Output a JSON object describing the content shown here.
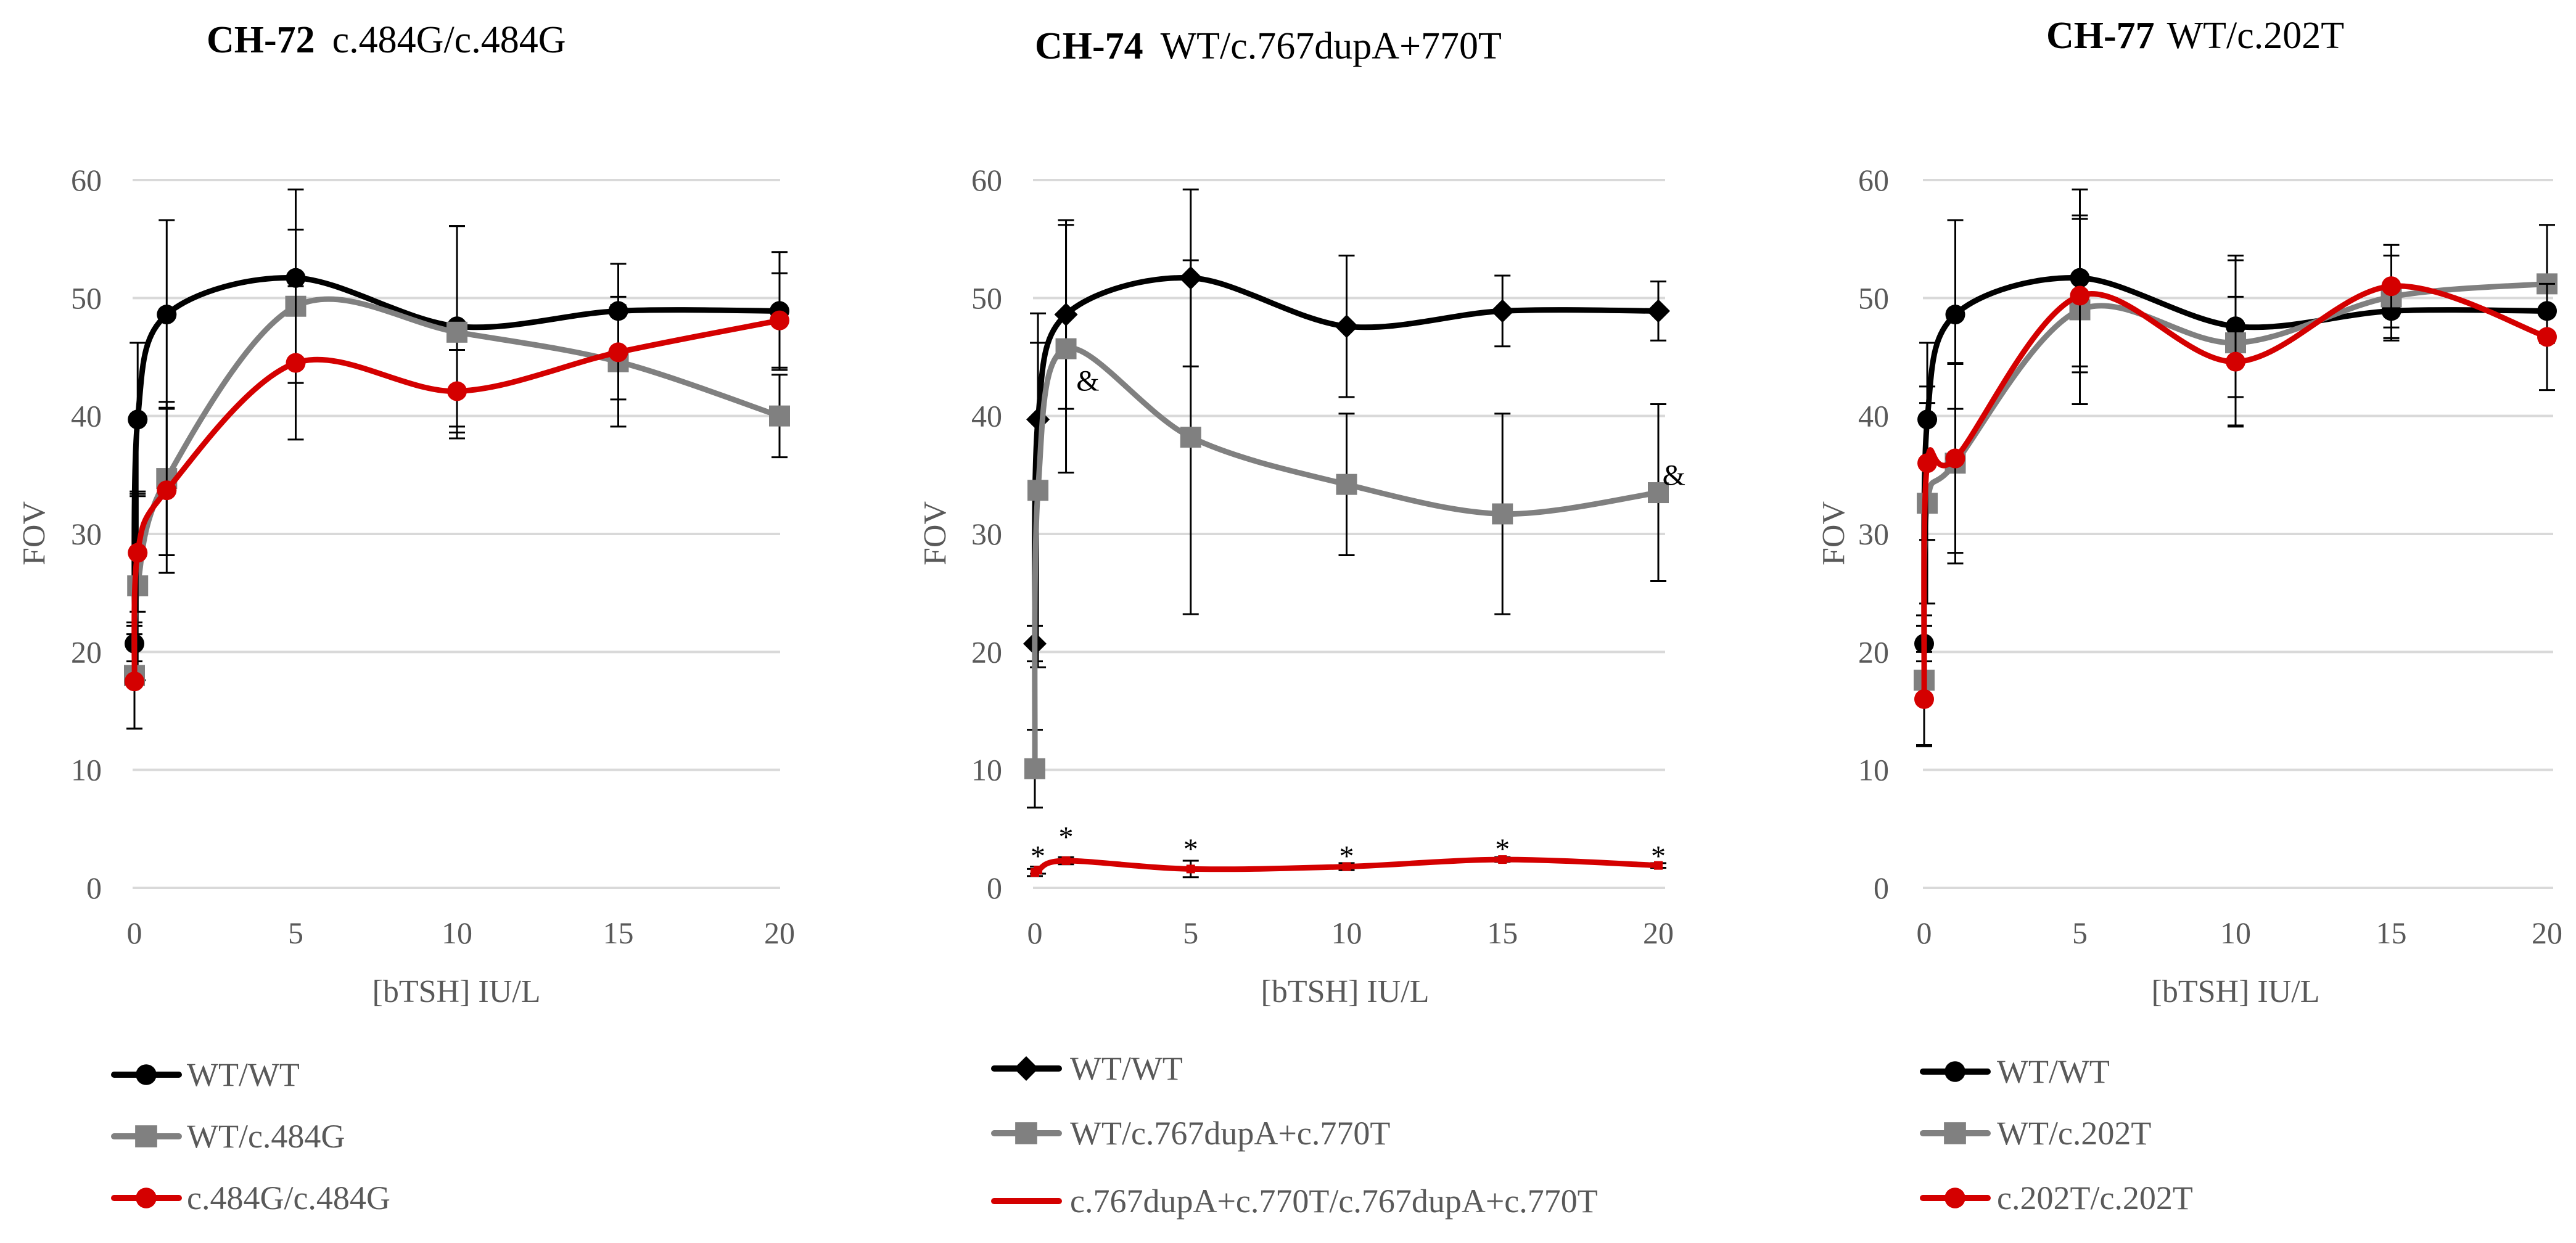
{
  "colors": {
    "wt": "#000000",
    "het": "#808080",
    "hom": "#d40000",
    "grid": "#d9d9d9",
    "text": "#595959"
  },
  "chart_data": [
    {
      "type": "line",
      "title_bold": "CH-72",
      "title_rest": "c.484G/c.484G",
      "xlabel": "[bTSH] IU/L",
      "ylabel": "FOV",
      "ylim": [
        0,
        60
      ],
      "yticks": [
        "0",
        "10",
        "20",
        "30",
        "40",
        "50",
        "60"
      ],
      "xticks": [
        "0",
        "5",
        "10",
        "15",
        "20"
      ],
      "x": [
        0,
        0.1,
        1,
        5,
        10,
        15,
        20
      ],
      "series": [
        {
          "name": "WT/WT",
          "color_key": "wt",
          "marker": "circle",
          "values": [
            20.7,
            39.7,
            48.6,
            51.7,
            47.6,
            48.9,
            48.9
          ],
          "errors": [
            1.5,
            6.5,
            8,
            7.5,
            8.5,
            4,
            5
          ]
        },
        {
          "name": "WT/c.484G",
          "color_key": "het",
          "marker": "square",
          "values": [
            18.0,
            25.6,
            34.7,
            49.3,
            47.1,
            44.6,
            40.0
          ],
          "errors": [
            4.5,
            8,
            6.5,
            6.5,
            9,
            5.5,
            3.5
          ]
        },
        {
          "name": "c.484G/c.484G",
          "color_key": "hom",
          "marker": "circle",
          "values": [
            17.5,
            28.4,
            33.7,
            44.5,
            42.1,
            45.4,
            48.1
          ],
          "errors": [
            4,
            5,
            7,
            6.5,
            3.5,
            4,
            4
          ]
        }
      ],
      "annotations": []
    },
    {
      "type": "line",
      "title_bold": "CH-74",
      "title_rest": "WT/c.767dupA+770T",
      "xlabel": "[bTSH] IU/L",
      "ylabel": "FOV",
      "ylim": [
        0,
        60
      ],
      "yticks": [
        "0",
        "10",
        "20",
        "30",
        "40",
        "50",
        "60"
      ],
      "xticks": [
        "0",
        "5",
        "10",
        "15",
        "20"
      ],
      "x": [
        0,
        0.1,
        1,
        5,
        10,
        15,
        20
      ],
      "series": [
        {
          "name": "WT/WT",
          "color_key": "wt",
          "marker": "diamond",
          "values": [
            20.7,
            39.7,
            48.6,
            51.7,
            47.6,
            48.9,
            48.9
          ],
          "errors": [
            1.5,
            6.5,
            8,
            7.5,
            6,
            3,
            2.5
          ]
        },
        {
          "name": "WT/c.767dupA+c.770T",
          "color_key": "het",
          "marker": "square",
          "values": [
            10.1,
            33.7,
            45.7,
            38.2,
            34.2,
            31.7,
            33.5
          ],
          "errors": [
            3.3,
            15,
            10.5,
            15,
            6,
            8.5,
            7.5
          ]
        },
        {
          "name": "c.767dupA+c.770T/c.767dupA+c.770T",
          "color_key": "hom",
          "marker": "none",
          "values": [
            1.3,
            1.5,
            2.3,
            1.6,
            1.8,
            2.4,
            1.9
          ],
          "errors": [
            0.3,
            0.3,
            0.3,
            0.7,
            0.3,
            0.2,
            0.2
          ]
        }
      ],
      "annotations": [
        {
          "text": "*",
          "x": 0.1,
          "y": 2.7
        },
        {
          "text": "*",
          "x": 1,
          "y": 4.3
        },
        {
          "text": "*",
          "x": 5,
          "y": 3.3
        },
        {
          "text": "*",
          "x": 10,
          "y": 2.7
        },
        {
          "text": "*",
          "x": 15,
          "y": 3.3
        },
        {
          "text": "*",
          "x": 20,
          "y": 2.7
        },
        {
          "text": "&",
          "x": 1.7,
          "y": 43.0
        },
        {
          "text": "&",
          "x": 20.5,
          "y": 35.0
        }
      ]
    },
    {
      "type": "line",
      "title_bold": "CH-77",
      "title_rest": "WT/c.202T",
      "xlabel": "[bTSH] IU/L",
      "ylabel": "FOV",
      "ylim": [
        0,
        60
      ],
      "yticks": [
        "0",
        "10",
        "20",
        "30",
        "40",
        "50",
        "60"
      ],
      "xticks": [
        "0",
        "5",
        "10",
        "15",
        "20"
      ],
      "x": [
        0,
        0.1,
        1,
        5,
        10,
        15,
        20
      ],
      "series": [
        {
          "name": "WT/WT",
          "color_key": "wt",
          "marker": "circle",
          "values": [
            20.7,
            39.7,
            48.6,
            51.7,
            47.6,
            48.9,
            48.9
          ],
          "errors": [
            1.5,
            6.5,
            8,
            7.5,
            6,
            2.5,
            2.5
          ]
        },
        {
          "name": "WT/c.202T",
          "color_key": "het",
          "marker": "square",
          "values": [
            17.6,
            32.6,
            36.0,
            49.0,
            46.2,
            50.1,
            51.2
          ],
          "errors": [
            5.5,
            8.5,
            8.5,
            8,
            7,
            3.5,
            5
          ]
        },
        {
          "name": "c.202T/c.202T",
          "color_key": "hom",
          "marker": "circle",
          "values": [
            16.0,
            36.0,
            36.4,
            50.2,
            44.6,
            51.0,
            46.7
          ],
          "errors": [
            4,
            6.5,
            8,
            6.5,
            5.5,
            3.5,
            4.5
          ]
        }
      ],
      "annotations": []
    }
  ]
}
